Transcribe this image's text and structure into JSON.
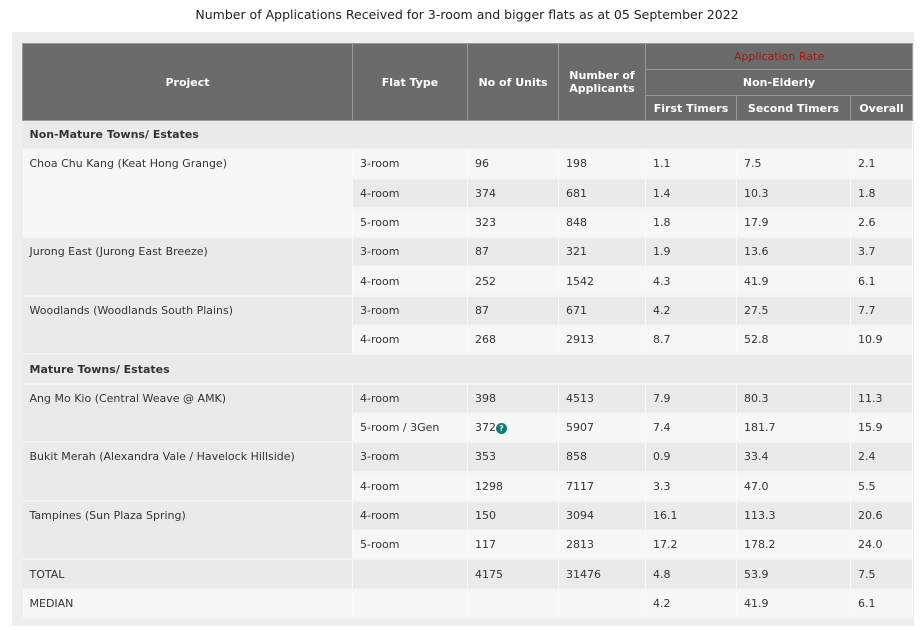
{
  "title": "Number of Applications Received for 3-room and bigger flats as at 05 September 2022",
  "headers": {
    "project": "Project",
    "flat_type": "Flat Type",
    "units": "No of Units",
    "applicants": "Number of Applicants",
    "rate": "Application Rate",
    "non_elderly": "Non-Elderly",
    "first": "First Timers",
    "second": "Second Timers",
    "overall": "Overall"
  },
  "colors": {
    "header_bg": "#6b6b6b",
    "rate_label": "#a01818",
    "info_icon": "#127a7a"
  },
  "sections": [
    {
      "label": "Non-Mature Towns/ Estates",
      "projects": [
        {
          "name": "Choa Chu Kang (Keat Hong Grange)",
          "rows": [
            [
              "3-room",
              "96",
              "198",
              "1.1",
              "7.5",
              "2.1"
            ],
            [
              "4-room",
              "374",
              "681",
              "1.4",
              "10.3",
              "1.8"
            ],
            [
              "5-room",
              "323",
              "848",
              "1.8",
              "17.9",
              "2.6"
            ]
          ]
        },
        {
          "name": "Jurong East (Jurong East Breeze)",
          "rows": [
            [
              "3-room",
              "87",
              "321",
              "1.9",
              "13.6",
              "3.7"
            ],
            [
              "4-room",
              "252",
              "1542",
              "4.3",
              "41.9",
              "6.1"
            ]
          ]
        },
        {
          "name": "Woodlands (Woodlands South Plains)",
          "rows": [
            [
              "3-room",
              "87",
              "671",
              "4.2",
              "27.5",
              "7.7"
            ],
            [
              "4-room",
              "268",
              "2913",
              "8.7",
              "52.8",
              "10.9"
            ]
          ]
        }
      ]
    },
    {
      "label": "Mature Towns/ Estates",
      "projects": [
        {
          "name": "Ang Mo Kio (Central Weave @ AMK)",
          "rows": [
            [
              "4-room",
              "398",
              "4513",
              "7.9",
              "80.3",
              "11.3"
            ],
            [
              "5-room / 3Gen",
              "372",
              "5907",
              "7.4",
              "181.7",
              "15.9"
            ]
          ]
        },
        {
          "name": "Bukit Merah (Alexandra Vale / Havelock Hillside)",
          "rows": [
            [
              "3-room",
              "353",
              "858",
              "0.9",
              "33.4",
              "2.4"
            ],
            [
              "4-room",
              "1298",
              "7117",
              "3.3",
              "47.0",
              "5.5"
            ]
          ]
        },
        {
          "name": "Tampines (Sun Plaza Spring)",
          "rows": [
            [
              "4-room",
              "150",
              "3094",
              "16.1",
              "113.3",
              "20.6"
            ],
            [
              "5-room",
              "117",
              "2813",
              "17.2",
              "178.2",
              "24.0"
            ]
          ]
        }
      ]
    }
  ],
  "info_icon_label": "?",
  "total": [
    "TOTAL",
    "",
    "4175",
    "31476",
    "4.8",
    "53.9",
    "7.5"
  ],
  "median": [
    "MEDIAN",
    "",
    "",
    "",
    "4.2",
    "41.9",
    "6.1"
  ]
}
